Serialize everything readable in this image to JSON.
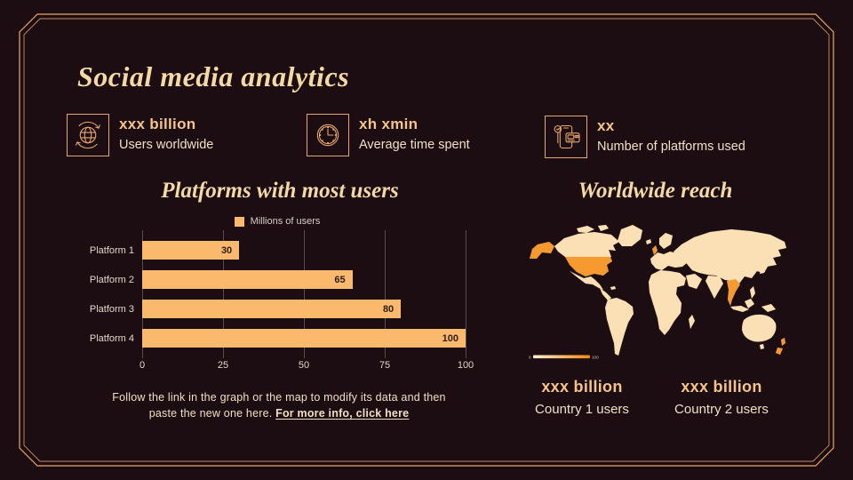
{
  "slide": {
    "title": "Social media analytics"
  },
  "stats": [
    {
      "icon": "globe-arrows-icon",
      "value": "xxx billion",
      "label": "Users worldwide"
    },
    {
      "icon": "clock-icon",
      "value": "xh xmin",
      "label": "Average time spent"
    },
    {
      "icon": "platforms-phone-icon",
      "value": "xx",
      "label": "Number of platforms used"
    }
  ],
  "chart_section": {
    "heading": "Platforms with most users"
  },
  "chart_data": {
    "type": "bar",
    "orientation": "horizontal",
    "title": "Platforms with most users",
    "categories": [
      "Platform 1",
      "Platform 2",
      "Platform 3",
      "Platform 4"
    ],
    "values": [
      30,
      65,
      80,
      100
    ],
    "legend": [
      "Millions of users"
    ],
    "legend_position": "top",
    "xlabel": "",
    "ylabel": "",
    "xlim": [
      0,
      100
    ],
    "xticks": [
      "0",
      "25",
      "50",
      "75",
      "100"
    ],
    "grid": true,
    "bar_color": "#FBB96D",
    "value_labels_inside_bars": true
  },
  "map_section": {
    "heading": "Worldwide reach",
    "legend_min": "0",
    "legend_max": "100",
    "highlighted_regions": [
      "United States & Alaska",
      "United Kingdom",
      "Thailand",
      "New Zealand"
    ]
  },
  "country_stats": [
    {
      "value": "xxx billion",
      "label": "Country 1 users"
    },
    {
      "value": "xxx billion",
      "label": "Country 2 users"
    }
  ],
  "footnote": {
    "line1": "Follow the link in the graph or the map to modify its data and then",
    "line2_prefix": "paste the new one here. ",
    "link_text": "For more info, click here"
  },
  "colors": {
    "background": "#1B0D12",
    "frame": "#E8A76C",
    "title_text": "#F5D9A4",
    "stat_value": "#F6C487",
    "body_text": "#F2DFC5",
    "bar": "#FBB96D",
    "bar_value_text": "#2E1C15",
    "axis_text": "#E2D6CB",
    "grid": "#564B47",
    "map_land": "#FBDFB5",
    "map_highlight": "#F6992F",
    "map_legend_start": "#FDEFD6",
    "map_legend_end": "#F5890A"
  }
}
